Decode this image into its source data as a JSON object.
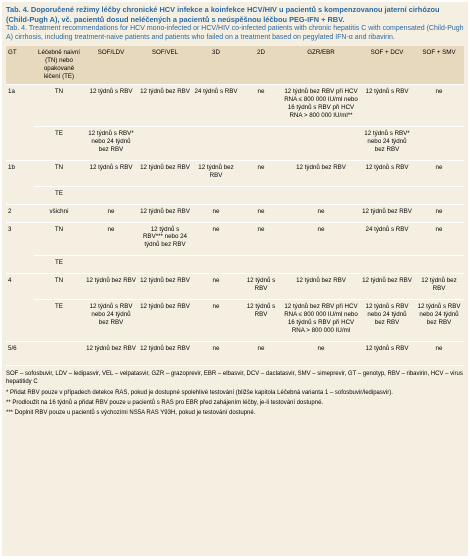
{
  "header": {
    "title": "Tab. 4. Doporučené režimy léčby chronické HCV infekce a koinfekce HCV/HIV u pacientů s kompenzovanou jaterní cirhózou (Child-Pugh A), vč. pacientů dosud neléčených a pacientů s neúspěšnou léčbou PEG-IFN + RBV.",
    "subtitle": "Tab. 4. Treatment recommendations for HCV mono-infected or HCV/HIV co-infected patients with chronic hepatitis C with compensated (Child-Pugh A) cirrhosis, including treatment-naive patients and patients who failed on a treatment based on pegylated IFN-α and ribavirin."
  },
  "table": {
    "columns": [
      "GT",
      "Léčebně naivní (TN) nebo opakovaně léčení (TE)",
      "SOF/LDV",
      "SOF/VEL",
      "3D",
      "2D",
      "GZR/EBR",
      "SOF + DCV",
      "SOF + SMV"
    ],
    "groups": [
      {
        "gt": "1a",
        "rows": [
          {
            "group": "TN",
            "cells": [
              "12 týdnů s RBV",
              "12 týdnů bez RBV",
              "24 týdnů s RBV",
              "ne",
              "12 týdnů bez RBV při HCV RNA ≤ 800 000 IU/ml nebo 16 týdnů s RBV při HCV RNA > 800 000 IU/ml**",
              "12 týdnů s RBV",
              "ne"
            ]
          },
          {
            "group": "TE",
            "cells": [
              "12 týdnů s RBV* nebo 24 týdnů bez RBV",
              null,
              null,
              null,
              null,
              "12 týdnů s RBV* nebo 24 týdnů bez RBV",
              null
            ]
          }
        ]
      },
      {
        "gt": "1b",
        "rows": [
          {
            "group": "TN",
            "cells": [
              "12 týdnů s RBV",
              "12 týdnů bez RBV",
              "12 týdnů bez RBV",
              "ne",
              "12 týdnů bez RBV",
              "12 týdnů s RBV",
              "ne"
            ]
          },
          {
            "group": "TE",
            "cells": [
              null,
              null,
              null,
              null,
              null,
              null,
              null
            ]
          }
        ]
      },
      {
        "gt": "2",
        "rows": [
          {
            "group": "všichni",
            "cells": [
              "ne",
              "12 týdnů bez RBV",
              "ne",
              "ne",
              "ne",
              "12 týdnů bez RBV",
              "ne"
            ]
          }
        ]
      },
      {
        "gt": "3",
        "rows": [
          {
            "group": "TN",
            "cells": [
              "ne",
              "12 týdnů s RBV*** nebo 24 týdnů bez RBV",
              "ne",
              "ne",
              "ne",
              "24 týdnů s RBV",
              "ne"
            ]
          },
          {
            "group": "TE",
            "cells": [
              null,
              null,
              null,
              null,
              null,
              null,
              null
            ]
          }
        ]
      },
      {
        "gt": "4",
        "rows": [
          {
            "group": "TN",
            "cells": [
              "12 týdnů bez RBV",
              "12 týdnů bez RBV",
              "ne",
              "12 týdnů s RBV",
              "12 týdnů bez RBV",
              "12 týdnů bez RBV",
              "12 týdnů bez RBV"
            ]
          },
          {
            "group": "TE",
            "cells": [
              "12 týdnů s RBV nebo 24 týdnů bez RBV",
              "12 týdnů bez RBV",
              "ne",
              "12 týdnů s RBV",
              "12 týdnů bez RBV při HCV RNA ≤ 800 000 IU/ml nebo 16 týdnů s RBV při HCV RNA > 800 000 IU/ml",
              "12 týdnů s RBV nebo 24 týdnů bez RBV",
              "12 týdnů s RBV nebo 24 týdnů bez RBV"
            ]
          }
        ]
      },
      {
        "gt": "5/6",
        "rows": [
          {
            "group": null,
            "cells": [
              "12 týdnů bez RBV",
              "12 týdnů bez RBV",
              "ne",
              "ne",
              "ne",
              "12 týdnů s RBV",
              "ne"
            ]
          }
        ]
      }
    ]
  },
  "notes": [
    "SOF – sofosbuvir, LDV – ledipasvir, VEL – velpatasvir, GZR – grazoprevir, EBR – elbasvir, DCV – daclatasvir, SMV – simeprevir, GT – genotyp, RBV – ribavirin, HCV – virus hepatitidy C",
    "* Přidat RBV pouze v případech detekce RAS, pokud je dostupné spolehlivé testování (bližše kapitola Léčebná varianta 1 – sofosbuvir/ledipasvir).",
    "** Prodloužit na 16 týdnů a přidat RBV pouze u pacientů s RAS pro EBR před zahájením léčby, je-li testování dostupné.",
    "*** Doplnit RBV pouze u pacientů s výchozími NS5A RAS Y93H, pokud je testování dostupné."
  ]
}
